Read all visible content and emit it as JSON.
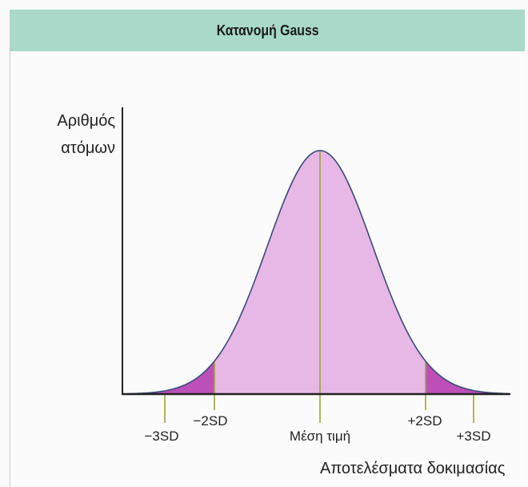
{
  "header": {
    "title": "Κατανομή Gauss"
  },
  "axes": {
    "ylabel_line1": "Αριθμός",
    "ylabel_line2": "ατόμων",
    "xlabel": "Αποτελέσματα δοκιμασίας"
  },
  "markers": [
    {
      "label": "−3SD"
    },
    {
      "label": "−2SD"
    },
    {
      "label": "Μέση τιμή"
    },
    {
      "label": "+2SD"
    },
    {
      "label": "+3SD"
    }
  ],
  "colors": {
    "header_bg": "#a9d9c9",
    "curve_fill": "#e7b8e6",
    "tail_fill": "#bd4fb8",
    "curve_stroke": "#3b4a7a",
    "marker_line": "#9aa43a",
    "axis": "#222222"
  }
}
